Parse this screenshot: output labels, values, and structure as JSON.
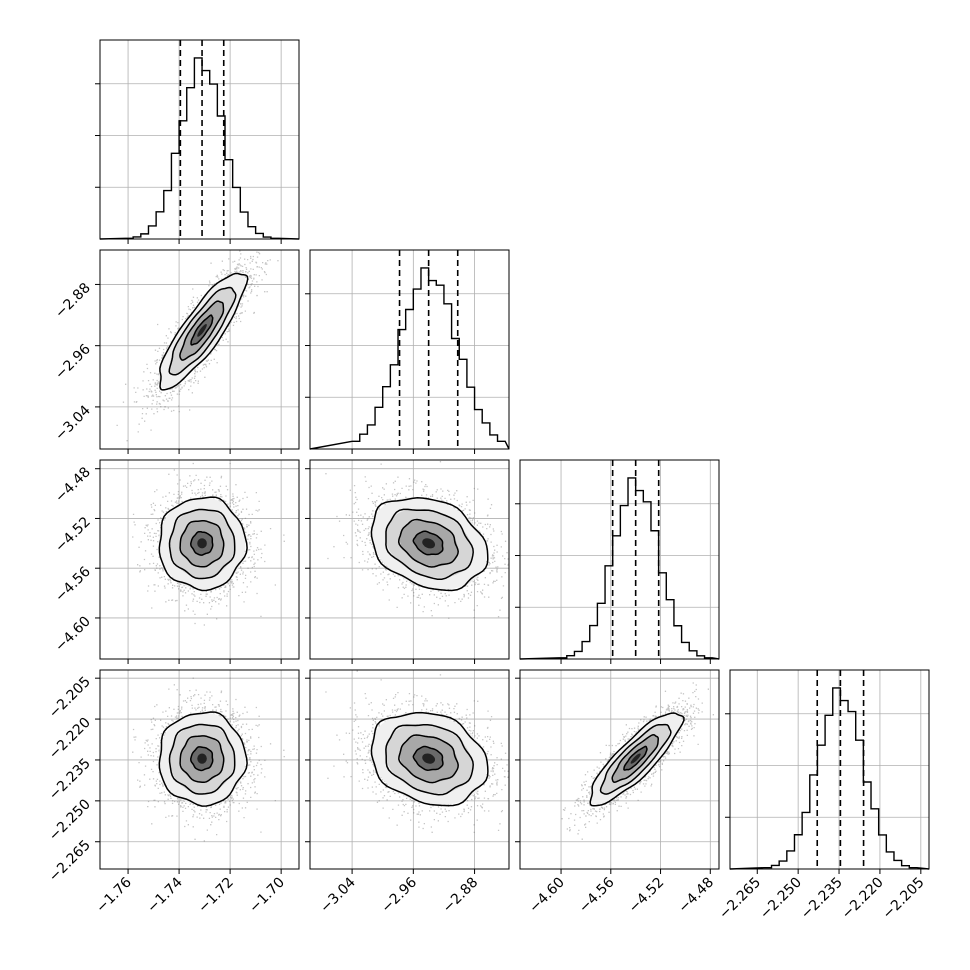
{
  "chart_data": {
    "type": "corner",
    "colors": {
      "line": "#000000",
      "grid": "#b0b0b0",
      "points": "#7f7f7f",
      "background": "#ffffff"
    },
    "grid": true,
    "parameters": [
      {
        "ticks": [
          -1.76,
          -1.74,
          -1.72,
          -1.7
        ],
        "tick_labels": [
          "−1.76",
          "−1.74",
          "−1.72",
          "−1.70"
        ],
        "range": [
          -1.771,
          -1.693
        ],
        "mean": -1.731,
        "sigma": 0.0085,
        "quantiles": [
          -1.7395,
          -1.731,
          -1.7225
        ]
      },
      {
        "ticks": [
          -3.04,
          -2.96,
          -2.88
        ],
        "tick_labels": [
          "−3.04",
          "−2.96",
          "−2.88"
        ],
        "range": [
          -3.095,
          -2.835
        ],
        "mean": -2.94,
        "sigma": 0.038,
        "quantiles": [
          -2.978,
          -2.94,
          -2.902
        ]
      },
      {
        "ticks": [
          -4.6,
          -4.56,
          -4.52,
          -4.48
        ],
        "tick_labels": [
          "−4.60",
          "−4.56",
          "−4.52",
          "−4.48"
        ],
        "range": [
          -4.633,
          -4.473
        ],
        "mean": -4.54,
        "sigma": 0.0185,
        "quantiles": [
          -4.5585,
          -4.54,
          -4.5215
        ]
      },
      {
        "ticks": [
          -2.265,
          -2.25,
          -2.235,
          -2.22,
          -2.205
        ],
        "tick_labels": [
          "−2.265",
          "−2.250",
          "−2.235",
          "−2.220",
          "−2.205"
        ],
        "range": [
          -2.275,
          -2.202
        ],
        "mean": -2.2345,
        "sigma": 0.0085,
        "quantiles": [
          -2.243,
          -2.2345,
          -2.226
        ]
      }
    ],
    "correlations": [
      {
        "row": 1,
        "col": 0,
        "rho": 0.85
      },
      {
        "row": 2,
        "col": 0,
        "rho": 0.0
      },
      {
        "row": 2,
        "col": 1,
        "rho": -0.25
      },
      {
        "row": 3,
        "col": 0,
        "rho": 0.0
      },
      {
        "row": 3,
        "col": 1,
        "rho": -0.2
      },
      {
        "row": 3,
        "col": 2,
        "rho": 0.85
      }
    ],
    "histogram_bins": 20,
    "contour_levels_sigma": [
      0.5,
      1.0,
      1.5,
      2.0
    ]
  }
}
